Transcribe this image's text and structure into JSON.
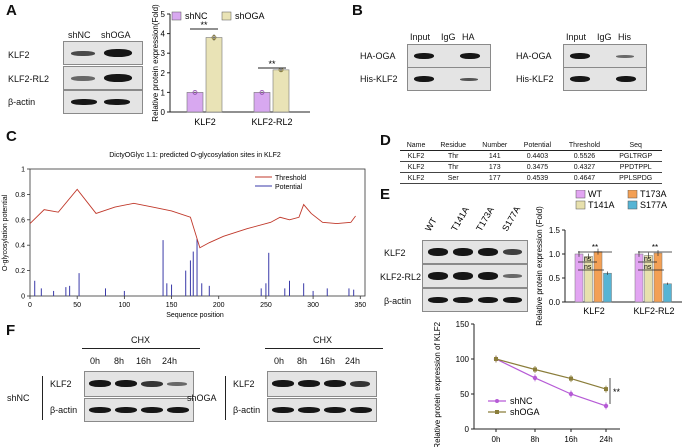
{
  "panels": {
    "A": "A",
    "B": "B",
    "C": "C",
    "D": "D",
    "E": "E",
    "F": "F"
  },
  "panelA": {
    "lanes": [
      "shNC",
      "shOGA"
    ],
    "rows": [
      "KLF2",
      "KLF2-RL2",
      "β-actin"
    ],
    "chart_data": {
      "type": "bar",
      "categories": [
        "KLF2",
        "KLF2-RL2"
      ],
      "series": [
        {
          "name": "shNC",
          "color": "#d8a8f0",
          "values": [
            1.0,
            1.0
          ]
        },
        {
          "name": "shOGA",
          "color": "#e9e3b6",
          "values": [
            3.8,
            2.15
          ]
        }
      ],
      "ylabel": "Relative protein expression(Fold)",
      "ylim": [
        0,
        5
      ],
      "yticks": [
        "0",
        "1",
        "2",
        "3",
        "4",
        "5"
      ],
      "significance": [
        "**",
        "**"
      ]
    }
  },
  "panelB": {
    "left": {
      "lanes": [
        "Input",
        "IgG",
        "HA"
      ],
      "rows": [
        "HA-OGA",
        "His-KLF2"
      ]
    },
    "right": {
      "lanes": [
        "Input",
        "IgG",
        "His"
      ],
      "rows": [
        "HA-OGA",
        "His-KLF2"
      ]
    }
  },
  "panelC": {
    "chart_data": {
      "type": "line",
      "title": "DictyOGlyc 1.1: predicted O-glycosylation sites in KLF2",
      "xlabel": "Sequence position",
      "ylabel": "O-glycosylation potential",
      "xlim": [
        0,
        355
      ],
      "ylim": [
        0,
        1
      ],
      "xticks": [
        "0",
        "50",
        "100",
        "150",
        "200",
        "250",
        "300",
        "350"
      ],
      "yticks": [
        "0",
        "0.2",
        "0.4",
        "0.6",
        "0.8",
        "1"
      ],
      "legend": [
        "Threshold",
        "Potential"
      ],
      "colors": {
        "threshold": "#c0392b",
        "potential": "#3a3aa8"
      },
      "threshold": [
        [
          0,
          0.57
        ],
        [
          15,
          0.68
        ],
        [
          30,
          0.66
        ],
        [
          50,
          0.84
        ],
        [
          70,
          0.65
        ],
        [
          90,
          0.7
        ],
        [
          110,
          0.73
        ],
        [
          130,
          0.7
        ],
        [
          150,
          0.67
        ],
        [
          170,
          0.62
        ],
        [
          180,
          0.38
        ],
        [
          190,
          0.42
        ],
        [
          205,
          0.47
        ],
        [
          230,
          0.53
        ],
        [
          255,
          0.58
        ],
        [
          265,
          0.62
        ],
        [
          275,
          0.6
        ],
        [
          285,
          0.62
        ],
        [
          290,
          0.72
        ],
        [
          298,
          0.65
        ],
        [
          310,
          0.58
        ],
        [
          325,
          0.57
        ],
        [
          340,
          0.58
        ],
        [
          345,
          0.63
        ]
      ],
      "potential": [
        [
          5,
          0.12
        ],
        [
          12,
          0.06
        ],
        [
          25,
          0.04
        ],
        [
          38,
          0.07
        ],
        [
          42,
          0.08
        ],
        [
          52,
          0.18
        ],
        [
          80,
          0.06
        ],
        [
          100,
          0.04
        ],
        [
          141,
          0.44
        ],
        [
          145,
          0.1
        ],
        [
          150,
          0.09
        ],
        [
          165,
          0.2
        ],
        [
          170,
          0.28
        ],
        [
          173,
          0.35
        ],
        [
          177,
          0.45
        ],
        [
          182,
          0.1
        ],
        [
          190,
          0.08
        ],
        [
          245,
          0.06
        ],
        [
          250,
          0.1
        ],
        [
          253,
          0.34
        ],
        [
          270,
          0.06
        ],
        [
          275,
          0.12
        ],
        [
          290,
          0.1
        ],
        [
          300,
          0.04
        ],
        [
          315,
          0.06
        ],
        [
          338,
          0.06
        ],
        [
          343,
          0.05
        ]
      ]
    }
  },
  "panelD": {
    "header": [
      "Name",
      "Residue",
      "Number",
      "Potential",
      "Threshold",
      "Seq"
    ],
    "rows": [
      [
        "KLF2",
        "Thr",
        "141",
        "0.4403",
        "0.5526",
        "PGLTRGP"
      ],
      [
        "KLF2",
        "Thr",
        "173",
        "0.3475",
        "0.4327",
        "PPDTPPL"
      ],
      [
        "KLF2",
        "Ser",
        "177",
        "0.4539",
        "0.4647",
        "PPLSPDG"
      ]
    ]
  },
  "panelE": {
    "lanes": [
      "WT",
      "T141A",
      "T173A",
      "S177A"
    ],
    "rows": [
      "KLF2",
      "KLF2-RL2",
      "β-actin"
    ],
    "chart_data": {
      "type": "bar",
      "categories": [
        "KLF2",
        "KLF2-RL2"
      ],
      "series": [
        {
          "name": "WT",
          "color": "#e2a5f2",
          "values": [
            1.0,
            1.0
          ]
        },
        {
          "name": "T141A",
          "color": "#e7e0ad",
          "values": [
            0.95,
            0.97
          ]
        },
        {
          "name": "T173A",
          "color": "#f3a055",
          "values": [
            1.05,
            1.02
          ]
        },
        {
          "name": "S177A",
          "color": "#56b4d4",
          "values": [
            0.6,
            0.38
          ]
        }
      ],
      "ylabel": "Relative protein expression (Fold)",
      "ylim": [
        0,
        1.5
      ],
      "yticks": [
        "0.0",
        "0.5",
        "1.0",
        "1.5"
      ],
      "ns": "ns",
      "significance": "**"
    }
  },
  "panelF": {
    "treatment": "CHX",
    "times": [
      "0h",
      "8h",
      "16h",
      "24h"
    ],
    "groups": [
      "shNC",
      "shOGA"
    ],
    "rows": [
      "KLF2",
      "β-actin"
    ],
    "chart_data": {
      "type": "line",
      "x": [
        "0h",
        "8h",
        "16h",
        "24h"
      ],
      "series": [
        {
          "name": "shNC",
          "color": "#b65bd6",
          "values": [
            100,
            73,
            50,
            33
          ]
        },
        {
          "name": "shOGA",
          "color": "#8a7d3a",
          "values": [
            100,
            85,
            72,
            57
          ]
        }
      ],
      "ylabel": "Relative protein expression of KLF2 (%)",
      "ylim": [
        0,
        150
      ],
      "yticks": [
        "0",
        "50",
        "100",
        "150"
      ],
      "significance": "**"
    }
  }
}
